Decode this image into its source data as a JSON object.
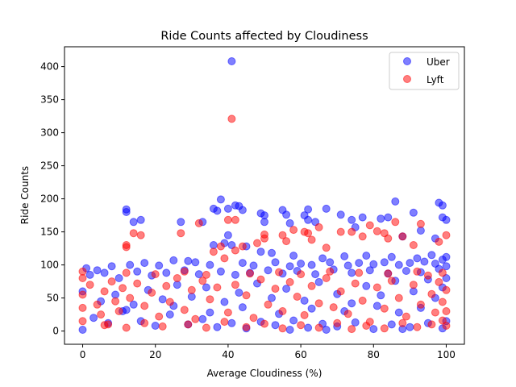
{
  "chart_data": {
    "type": "scatter",
    "title": "Ride Counts affected by Cloudiness",
    "xlabel": "Average Cloudiness (%)",
    "ylabel": "Ride Counts",
    "xlim": [
      -5,
      105
    ],
    "ylim": [
      -20,
      430
    ],
    "xticks": [
      0,
      20,
      40,
      60,
      80,
      100
    ],
    "yticks": [
      0,
      50,
      100,
      150,
      200,
      250,
      300,
      350,
      400
    ],
    "grid": false,
    "legend_position": "top-right",
    "series": [
      {
        "name": "Uber",
        "color": "#0000ff",
        "opacity": 0.5,
        "points": [
          [
            41,
            408
          ],
          [
            12,
            184
          ],
          [
            12,
            180
          ],
          [
            14,
            165
          ],
          [
            16,
            168
          ],
          [
            27,
            165
          ],
          [
            33,
            165
          ],
          [
            36,
            185
          ],
          [
            37,
            182
          ],
          [
            38,
            199
          ],
          [
            40,
            185
          ],
          [
            42,
            190
          ],
          [
            43,
            189
          ],
          [
            44,
            183
          ],
          [
            40,
            145
          ],
          [
            39,
            133
          ],
          [
            41,
            130
          ],
          [
            49,
            178
          ],
          [
            50,
            175
          ],
          [
            50,
            165
          ],
          [
            55,
            183
          ],
          [
            56,
            176
          ],
          [
            57,
            163
          ],
          [
            61,
            175
          ],
          [
            62,
            184
          ],
          [
            62,
            168
          ],
          [
            64,
            165
          ],
          [
            67,
            185
          ],
          [
            71,
            176
          ],
          [
            74,
            168
          ],
          [
            75,
            157
          ],
          [
            77,
            172
          ],
          [
            82,
            170
          ],
          [
            84,
            172
          ],
          [
            86,
            196
          ],
          [
            88,
            143
          ],
          [
            91,
            179
          ],
          [
            93,
            152
          ],
          [
            98,
            194
          ],
          [
            99,
            190
          ],
          [
            99,
            172
          ],
          [
            100,
            168
          ],
          [
            97,
            140
          ],
          [
            45,
            128
          ],
          [
            36,
            130
          ],
          [
            49,
            120
          ],
          [
            29,
            106
          ],
          [
            52,
            118
          ],
          [
            58,
            114
          ],
          [
            66,
            110
          ],
          [
            72,
            113
          ],
          [
            78,
            114
          ],
          [
            85,
            112
          ],
          [
            92,
            110
          ],
          [
            96,
            115
          ],
          [
            100,
            112
          ],
          [
            1,
            95
          ],
          [
            4,
            92
          ],
          [
            8,
            98
          ],
          [
            13,
            100
          ],
          [
            17,
            103
          ],
          [
            21,
            99
          ],
          [
            25,
            107
          ],
          [
            31,
            104
          ],
          [
            35,
            100
          ],
          [
            44,
            103
          ],
          [
            47,
            99
          ],
          [
            53,
            104
          ],
          [
            57,
            98
          ],
          [
            60,
            102
          ],
          [
            63,
            100
          ],
          [
            68,
            104
          ],
          [
            73,
            99
          ],
          [
            76,
            103
          ],
          [
            80,
            101
          ],
          [
            83,
            104
          ],
          [
            87,
            100
          ],
          [
            90,
            103
          ],
          [
            94,
            105
          ],
          [
            97,
            102
          ],
          [
            99,
            108
          ],
          [
            100,
            98
          ],
          [
            2,
            85
          ],
          [
            6,
            88
          ],
          [
            10,
            80
          ],
          [
            15,
            90
          ],
          [
            19,
            84
          ],
          [
            23,
            88
          ],
          [
            28,
            92
          ],
          [
            32,
            86
          ],
          [
            38,
            90
          ],
          [
            42,
            85
          ],
          [
            46,
            88
          ],
          [
            51,
            92
          ],
          [
            55,
            87
          ],
          [
            59,
            91
          ],
          [
            64,
            86
          ],
          [
            69,
            93
          ],
          [
            74,
            88
          ],
          [
            79,
            92
          ],
          [
            84,
            87
          ],
          [
            89,
            91
          ],
          [
            93,
            89
          ],
          [
            98,
            94
          ],
          [
            0,
            60
          ],
          [
            3,
            20
          ],
          [
            7,
            12
          ],
          [
            11,
            30
          ],
          [
            16,
            15
          ],
          [
            20,
            8
          ],
          [
            24,
            25
          ],
          [
            29,
            10
          ],
          [
            33,
            18
          ],
          [
            37,
            6
          ],
          [
            41,
            12
          ],
          [
            45,
            4
          ],
          [
            49,
            14
          ],
          [
            53,
            9
          ],
          [
            58,
            16
          ],
          [
            62,
            5
          ],
          [
            66,
            11
          ],
          [
            70,
            7
          ],
          [
            75,
            13
          ],
          [
            80,
            3
          ],
          [
            85,
            10
          ],
          [
            90,
            6
          ],
          [
            95,
            12
          ],
          [
            99,
            4
          ],
          [
            100,
            15
          ],
          [
            0,
            2
          ],
          [
            57,
            2
          ],
          [
            67,
            2
          ],
          [
            88,
            3
          ],
          [
            5,
            45
          ],
          [
            9,
            55
          ],
          [
            14,
            40
          ],
          [
            18,
            62
          ],
          [
            22,
            48
          ],
          [
            26,
            70
          ],
          [
            30,
            52
          ],
          [
            34,
            66
          ],
          [
            39,
            44
          ],
          [
            43,
            58
          ],
          [
            48,
            72
          ],
          [
            52,
            50
          ],
          [
            56,
            64
          ],
          [
            61,
            46
          ],
          [
            65,
            74
          ],
          [
            70,
            56
          ],
          [
            74,
            42
          ],
          [
            78,
            68
          ],
          [
            82,
            54
          ],
          [
            86,
            76
          ],
          [
            91,
            60
          ],
          [
            95,
            78
          ],
          [
            99,
            66
          ],
          [
            100,
            80
          ],
          [
            97,
            50
          ],
          [
            93,
            35
          ],
          [
            87,
            28
          ],
          [
            81,
            38
          ],
          [
            72,
            30
          ],
          [
            63,
            34
          ],
          [
            54,
            26
          ],
          [
            44,
            36
          ],
          [
            35,
            28
          ],
          [
            25,
            38
          ],
          [
            12,
            32
          ]
        ]
      },
      {
        "name": "Lyft",
        "color": "#ff0000",
        "opacity": 0.5,
        "points": [
          [
            41,
            321
          ],
          [
            40,
            168
          ],
          [
            42,
            168
          ],
          [
            44,
            128
          ],
          [
            38,
            128
          ],
          [
            36,
            120
          ],
          [
            39,
            110
          ],
          [
            42,
            122
          ],
          [
            12,
            130
          ],
          [
            12,
            127
          ],
          [
            14,
            148
          ],
          [
            16,
            145
          ],
          [
            27,
            148
          ],
          [
            32,
            163
          ],
          [
            48,
            133
          ],
          [
            50,
            146
          ],
          [
            50,
            140
          ],
          [
            55,
            145
          ],
          [
            56,
            136
          ],
          [
            58,
            153
          ],
          [
            61,
            150
          ],
          [
            62,
            148
          ],
          [
            63,
            138
          ],
          [
            65,
            157
          ],
          [
            67,
            126
          ],
          [
            71,
            150
          ],
          [
            74,
            150
          ],
          [
            77,
            143
          ],
          [
            79,
            160
          ],
          [
            81,
            151
          ],
          [
            83,
            148
          ],
          [
            84,
            140
          ],
          [
            86,
            165
          ],
          [
            88,
            143
          ],
          [
            91,
            130
          ],
          [
            93,
            162
          ],
          [
            98,
            135
          ],
          [
            100,
            145
          ],
          [
            12,
            88
          ],
          [
            20,
            86
          ],
          [
            28,
            90
          ],
          [
            34,
            85
          ],
          [
            46,
            87
          ],
          [
            54,
            89
          ],
          [
            60,
            86
          ],
          [
            68,
            90
          ],
          [
            76,
            88
          ],
          [
            84,
            87
          ],
          [
            92,
            90
          ],
          [
            99,
            88
          ],
          [
            0,
            90
          ],
          [
            0,
            80
          ],
          [
            0,
            55
          ],
          [
            0,
            35
          ],
          [
            0,
            15
          ],
          [
            2,
            70
          ],
          [
            4,
            40
          ],
          [
            5,
            25
          ],
          [
            6,
            60
          ],
          [
            7,
            10
          ],
          [
            8,
            75
          ],
          [
            9,
            45
          ],
          [
            10,
            30
          ],
          [
            11,
            65
          ],
          [
            13,
            50
          ],
          [
            15,
            72
          ],
          [
            17,
            38
          ],
          [
            19,
            58
          ],
          [
            21,
            22
          ],
          [
            23,
            68
          ],
          [
            24,
            44
          ],
          [
            26,
            80
          ],
          [
            28,
            32
          ],
          [
            30,
            62
          ],
          [
            31,
            18
          ],
          [
            33,
            76
          ],
          [
            35,
            48
          ],
          [
            37,
            66
          ],
          [
            40,
            28
          ],
          [
            42,
            70
          ],
          [
            45,
            54
          ],
          [
            47,
            20
          ],
          [
            49,
            78
          ],
          [
            51,
            40
          ],
          [
            53,
            64
          ],
          [
            55,
            30
          ],
          [
            57,
            74
          ],
          [
            59,
            52
          ],
          [
            61,
            24
          ],
          [
            63,
            68
          ],
          [
            65,
            42
          ],
          [
            67,
            80
          ],
          [
            69,
            36
          ],
          [
            71,
            60
          ],
          [
            73,
            26
          ],
          [
            75,
            72
          ],
          [
            77,
            46
          ],
          [
            79,
            14
          ],
          [
            81,
            66
          ],
          [
            83,
            34
          ],
          [
            85,
            76
          ],
          [
            87,
            50
          ],
          [
            89,
            22
          ],
          [
            91,
            70
          ],
          [
            93,
            40
          ],
          [
            95,
            84
          ],
          [
            96,
            56
          ],
          [
            97,
            28
          ],
          [
            98,
            74
          ],
          [
            99,
            44
          ],
          [
            100,
            62
          ],
          [
            100,
            30
          ],
          [
            100,
            8
          ],
          [
            99,
            16
          ],
          [
            96,
            10
          ],
          [
            92,
            6
          ],
          [
            88,
            12
          ],
          [
            83,
            4
          ],
          [
            78,
            8
          ],
          [
            74,
            3
          ],
          [
            70,
            12
          ],
          [
            65,
            5
          ],
          [
            60,
            9
          ],
          [
            55,
            4
          ],
          [
            50,
            11
          ],
          [
            45,
            6
          ],
          [
            39,
            14
          ],
          [
            34,
            5
          ],
          [
            29,
            10
          ],
          [
            22,
            7
          ],
          [
            17,
            12
          ],
          [
            12,
            5
          ],
          [
            6,
            9
          ]
        ]
      }
    ]
  }
}
